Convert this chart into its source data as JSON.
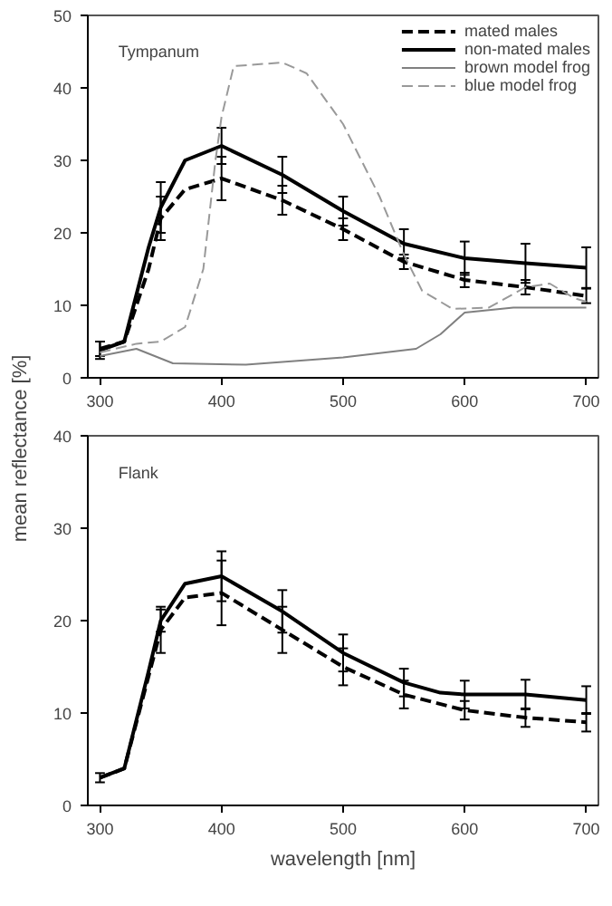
{
  "chart_data": [
    {
      "type": "line",
      "title": "Tympanum",
      "ylabel": "mean reflectance [%]",
      "xlim": [
        290,
        710
      ],
      "ylim": [
        0,
        50
      ],
      "xticks": [
        300,
        400,
        500,
        600,
        700
      ],
      "yticks": [
        0,
        10,
        20,
        30,
        40,
        50
      ],
      "grid": false,
      "legend": "top right",
      "marker": "none",
      "series": [
        {
          "name": "mated males",
          "color": "#000000",
          "line_style": "dashed",
          "x": [
            300,
            320,
            340,
            350,
            370,
            400,
            450,
            500,
            550,
            600,
            650,
            700
          ],
          "values": [
            4,
            5,
            15,
            22,
            26,
            27.5,
            24.5,
            20.5,
            16,
            13.5,
            12.5,
            11.3
          ],
          "errors": [
            1,
            null,
            null,
            3,
            null,
            3,
            2,
            1.5,
            1,
            1,
            1,
            1
          ]
        },
        {
          "name": "non-mated males",
          "color": "#000000",
          "line_style": "solid",
          "x": [
            300,
            320,
            340,
            350,
            370,
            400,
            450,
            500,
            550,
            600,
            650,
            700
          ],
          "values": [
            3.8,
            5,
            18,
            23.5,
            30,
            32,
            28,
            23,
            18.5,
            16.5,
            15.8,
            15.2
          ],
          "errors": [
            1.2,
            null,
            null,
            3.5,
            null,
            2.5,
            2.5,
            2,
            2,
            2.3,
            2.7,
            2.8
          ]
        },
        {
          "name": "brown model frog",
          "color": "#808080",
          "line_style": "solid",
          "x": [
            300,
            330,
            360,
            420,
            500,
            560,
            580,
            600,
            640,
            700
          ],
          "values": [
            3,
            4,
            2,
            1.8,
            2.8,
            4,
            6,
            9,
            9.7,
            9.7
          ]
        },
        {
          "name": "blue model frog",
          "color": "#999999",
          "line_style": "dashed",
          "x": [
            300,
            330,
            350,
            370,
            385,
            395,
            400,
            410,
            450,
            470,
            500,
            530,
            550,
            565,
            590,
            620,
            650,
            670,
            690,
            700
          ],
          "values": [
            3.5,
            4.7,
            5,
            7,
            15,
            30,
            36,
            43,
            43.5,
            42,
            35,
            25,
            17,
            12,
            9.5,
            9.7,
            12.5,
            13,
            11,
            10.5
          ]
        }
      ]
    },
    {
      "type": "line",
      "title": "Flank",
      "xlabel": "wavelength [nm]",
      "xlim": [
        290,
        710
      ],
      "ylim": [
        0,
        40
      ],
      "xticks": [
        300,
        400,
        500,
        600,
        700
      ],
      "yticks": [
        0,
        10,
        20,
        30,
        40
      ],
      "grid": false,
      "marker": "none",
      "series": [
        {
          "color": "#000000",
          "line_style": "dashed",
          "x": [
            300,
            320,
            340,
            350,
            370,
            400,
            450,
            500,
            550,
            600,
            650,
            700
          ],
          "values": [
            3,
            4,
            14,
            19,
            22.5,
            23,
            19,
            15,
            12,
            10.3,
            9.5,
            9
          ],
          "errors": [
            null,
            null,
            null,
            2.5,
            null,
            3.5,
            2.5,
            2,
            1.5,
            1,
            1,
            1
          ]
        },
        {
          "color": "#000000",
          "line_style": "solid",
          "x": [
            300,
            320,
            340,
            350,
            370,
            400,
            450,
            500,
            550,
            580,
            600,
            650,
            700
          ],
          "values": [
            3,
            4,
            14.5,
            20,
            24,
            24.8,
            21,
            16.5,
            13.3,
            12.2,
            12,
            12,
            11.4
          ],
          "errors": [
            0.5,
            null,
            null,
            1.2,
            null,
            2.7,
            2.3,
            2,
            1.5,
            null,
            1.5,
            1.6,
            1.5
          ]
        }
      ]
    }
  ]
}
